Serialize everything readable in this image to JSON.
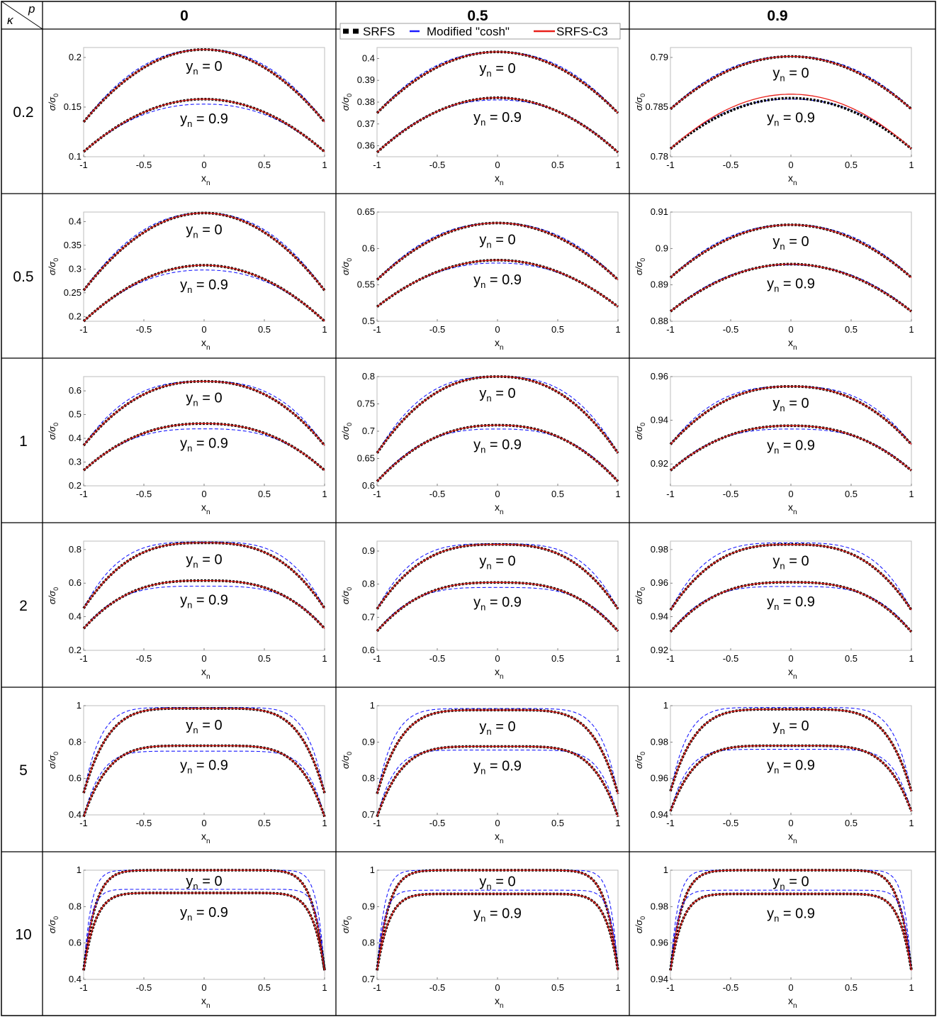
{
  "table": {
    "corner_kappa": "κ",
    "corner_p": "p",
    "p_headers": [
      "0",
      "0.5",
      "0.9"
    ],
    "kappa_labels": [
      "0.2",
      "0.5",
      "1",
      "2",
      "5",
      "10"
    ]
  },
  "legend": {
    "items": [
      {
        "label": "SRFS",
        "style": "dotted-black"
      },
      {
        "label": "Modified \"cosh\"",
        "style": "dashed-blue"
      },
      {
        "label": "SRFS-C3",
        "style": "solid-red"
      }
    ]
  },
  "colors": {
    "srfs": "#000000",
    "cosh": "#1a1aff",
    "c3": "#e8201a",
    "frame": "#bdbdbd"
  },
  "axis_text": {
    "xlabel_main": "x",
    "xlabel_sub": "n",
    "ylabel": "σ/σ",
    "ylabel_sub": "0"
  },
  "curve_labels": {
    "yn0": "y",
    "yn0_sub": "n",
    "yn0_val": " = 0",
    "yn9_val": " = 0.9"
  },
  "chart_data": [
    {
      "type": "line",
      "kappa": "0.2",
      "p": "0",
      "xlim": [
        -1,
        1
      ],
      "ylim": [
        0.1,
        0.21
      ],
      "yticks": [
        "0.1",
        "0.15",
        "0.2"
      ],
      "yticks_v": [
        0.1,
        0.15,
        0.2
      ],
      "xticks": [
        "-1",
        "-0.5",
        "0",
        "0.5",
        "1"
      ],
      "series": [
        {
          "curve": "yn=0",
          "edge": 0.135,
          "center": 0.208,
          "cosh_edge": 0.135,
          "cosh_center": 0.208
        },
        {
          "curve": "yn=0.9",
          "edge": 0.105,
          "center": 0.158,
          "cosh_edge": 0.105,
          "cosh_center": 0.153
        }
      ]
    },
    {
      "type": "line",
      "kappa": "0.2",
      "p": "0.5",
      "xlim": [
        -1,
        1
      ],
      "ylim": [
        0.355,
        0.405
      ],
      "yticks": [
        "0.36",
        "0.37",
        "0.38",
        "0.39",
        "0.4"
      ],
      "yticks_v": [
        0.36,
        0.37,
        0.38,
        0.39,
        0.4
      ],
      "xticks": [
        "-1",
        "-0.5",
        "0",
        "0.5",
        "1"
      ],
      "series": [
        {
          "curve": "yn=0",
          "edge": 0.375,
          "center": 0.403,
          "cosh_edge": 0.375,
          "cosh_center": 0.403
        },
        {
          "curve": "yn=0.9",
          "edge": 0.357,
          "center": 0.382,
          "cosh_edge": 0.357,
          "cosh_center": 0.381
        }
      ]
    },
    {
      "type": "line",
      "kappa": "0.2",
      "p": "0.9",
      "xlim": [
        -1,
        1
      ],
      "ylim": [
        0.78,
        0.791
      ],
      "yticks": [
        "0.78",
        "0.785",
        "0.79"
      ],
      "yticks_v": [
        0.78,
        0.785,
        0.79
      ],
      "xticks": [
        "-1",
        "-0.5",
        "0",
        "0.5",
        "1"
      ],
      "series": [
        {
          "curve": "yn=0",
          "edge": 0.7848,
          "center": 0.7901,
          "cosh_edge": 0.7848,
          "cosh_center": 0.7901
        },
        {
          "curve": "yn=0.9",
          "edge": 0.7808,
          "center": 0.7859,
          "cosh_edge": 0.7808,
          "cosh_center": 0.7858,
          "c3_center": 0.7863
        }
      ]
    },
    {
      "type": "line",
      "kappa": "0.5",
      "p": "0",
      "xlim": [
        -1,
        1
      ],
      "ylim": [
        0.19,
        0.42
      ],
      "yticks": [
        "0.2",
        "0.25",
        "0.3",
        "0.35",
        "0.4"
      ],
      "yticks_v": [
        0.2,
        0.25,
        0.3,
        0.35,
        0.4
      ],
      "xticks": [
        "-1",
        "-0.5",
        "0",
        "0.5",
        "1"
      ],
      "series": [
        {
          "curve": "yn=0",
          "edge": 0.255,
          "center": 0.418,
          "cosh_edge": 0.255,
          "cosh_center": 0.418
        },
        {
          "curve": "yn=0.9",
          "edge": 0.19,
          "center": 0.308,
          "cosh_edge": 0.19,
          "cosh_center": 0.298
        }
      ]
    },
    {
      "type": "line",
      "kappa": "0.5",
      "p": "0.5",
      "xlim": [
        -1,
        1
      ],
      "ylim": [
        0.5,
        0.65
      ],
      "yticks": [
        "0.5",
        "0.55",
        "0.6",
        "0.65"
      ],
      "yticks_v": [
        0.5,
        0.55,
        0.6,
        0.65
      ],
      "xticks": [
        "-1",
        "-0.5",
        "0",
        "0.5",
        "1"
      ],
      "series": [
        {
          "curve": "yn=0",
          "edge": 0.557,
          "center": 0.635,
          "cosh_edge": 0.557,
          "cosh_center": 0.635
        },
        {
          "curve": "yn=0.9",
          "edge": 0.52,
          "center": 0.584,
          "cosh_edge": 0.52,
          "cosh_center": 0.58
        }
      ]
    },
    {
      "type": "line",
      "kappa": "0.5",
      "p": "0.9",
      "xlim": [
        -1,
        1
      ],
      "ylim": [
        0.88,
        0.91
      ],
      "yticks": [
        "0.88",
        "0.89",
        "0.9",
        "0.91"
      ],
      "yticks_v": [
        0.88,
        0.89,
        0.9,
        0.91
      ],
      "xticks": [
        "-1",
        "-0.5",
        "0",
        "0.5",
        "1"
      ],
      "series": [
        {
          "curve": "yn=0",
          "edge": 0.892,
          "center": 0.9065,
          "cosh_edge": 0.892,
          "cosh_center": 0.9065
        },
        {
          "curve": "yn=0.9",
          "edge": 0.8827,
          "center": 0.8957,
          "cosh_edge": 0.8827,
          "cosh_center": 0.8955
        }
      ]
    },
    {
      "type": "line",
      "kappa": "1",
      "p": "0",
      "xlim": [
        -1,
        1
      ],
      "ylim": [
        0.2,
        0.66
      ],
      "yticks": [
        "0.2",
        "0.3",
        "0.4",
        "0.5",
        "0.6"
      ],
      "yticks_v": [
        0.2,
        0.3,
        0.4,
        0.5,
        0.6
      ],
      "xticks": [
        "-1",
        "-0.5",
        "0",
        "0.5",
        "1"
      ],
      "series": [
        {
          "curve": "yn=0",
          "edge": 0.37,
          "center": 0.64,
          "cosh_edge": 0.37,
          "cosh_center": 0.64
        },
        {
          "curve": "yn=0.9",
          "edge": 0.265,
          "center": 0.462,
          "cosh_edge": 0.265,
          "cosh_center": 0.44
        }
      ]
    },
    {
      "type": "line",
      "kappa": "1",
      "p": "0.5",
      "xlim": [
        -1,
        1
      ],
      "ylim": [
        0.6,
        0.8
      ],
      "yticks": [
        "0.6",
        "0.65",
        "0.7",
        "0.75",
        "0.8"
      ],
      "yticks_v": [
        0.6,
        0.65,
        0.7,
        0.75,
        0.8
      ],
      "xticks": [
        "-1",
        "-0.5",
        "0",
        "0.5",
        "1"
      ],
      "series": [
        {
          "curve": "yn=0",
          "edge": 0.66,
          "center": 0.8,
          "cosh_edge": 0.66,
          "cosh_center": 0.8
        },
        {
          "curve": "yn=0.9",
          "edge": 0.608,
          "center": 0.711,
          "cosh_edge": 0.608,
          "cosh_center": 0.704
        }
      ]
    },
    {
      "type": "line",
      "kappa": "1",
      "p": "0.9",
      "xlim": [
        -1,
        1
      ],
      "ylim": [
        0.91,
        0.96
      ],
      "yticks": [
        "0.92",
        "0.94",
        "0.96"
      ],
      "yticks_v": [
        0.92,
        0.94,
        0.96
      ],
      "xticks": [
        "-1",
        "-0.5",
        "0",
        "0.5",
        "1"
      ],
      "series": [
        {
          "curve": "yn=0",
          "edge": 0.929,
          "center": 0.9555,
          "cosh_edge": 0.929,
          "cosh_center": 0.9555
        },
        {
          "curve": "yn=0.9",
          "edge": 0.917,
          "center": 0.9375,
          "cosh_edge": 0.917,
          "cosh_center": 0.936
        }
      ]
    },
    {
      "type": "line",
      "kappa": "2",
      "p": "0",
      "xlim": [
        -1,
        1
      ],
      "ylim": [
        0.2,
        0.85
      ],
      "yticks": [
        "0.2",
        "0.4",
        "0.6",
        "0.8"
      ],
      "yticks_v": [
        0.2,
        0.4,
        0.6,
        0.8
      ],
      "xticks": [
        "-1",
        "-0.5",
        "0",
        "0.5",
        "1"
      ],
      "series": [
        {
          "curve": "yn=0",
          "edge": 0.45,
          "center": 0.84,
          "cosh_edge": 0.45,
          "cosh_center": 0.845
        },
        {
          "curve": "yn=0.9",
          "edge": 0.33,
          "center": 0.615,
          "cosh_edge": 0.33,
          "cosh_center": 0.582
        }
      ]
    },
    {
      "type": "line",
      "kappa": "2",
      "p": "0.5",
      "xlim": [
        -1,
        1
      ],
      "ylim": [
        0.6,
        0.93
      ],
      "yticks": [
        "0.6",
        "0.7",
        "0.8",
        "0.9"
      ],
      "yticks_v": [
        0.6,
        0.7,
        0.8,
        0.9
      ],
      "xticks": [
        "-1",
        "-0.5",
        "0",
        "0.5",
        "1"
      ],
      "series": [
        {
          "curve": "yn=0",
          "edge": 0.725,
          "center": 0.92,
          "cosh_edge": 0.725,
          "cosh_center": 0.922
        },
        {
          "curve": "yn=0.9",
          "edge": 0.658,
          "center": 0.805,
          "cosh_edge": 0.658,
          "cosh_center": 0.79
        }
      ]
    },
    {
      "type": "line",
      "kappa": "2",
      "p": "0.9",
      "xlim": [
        -1,
        1
      ],
      "ylim": [
        0.92,
        0.985
      ],
      "yticks": [
        "0.92",
        "0.94",
        "0.96",
        "0.98"
      ],
      "yticks_v": [
        0.92,
        0.94,
        0.96,
        0.98
      ],
      "xticks": [
        "-1",
        "-0.5",
        "0",
        "0.5",
        "1"
      ],
      "series": [
        {
          "curve": "yn=0",
          "edge": 0.944,
          "center": 0.983,
          "cosh_edge": 0.944,
          "cosh_center": 0.984
        },
        {
          "curve": "yn=0.9",
          "edge": 0.931,
          "center": 0.9605,
          "cosh_edge": 0.931,
          "cosh_center": 0.958
        }
      ]
    },
    {
      "type": "line",
      "kappa": "5",
      "p": "0",
      "xlim": [
        -1,
        1
      ],
      "ylim": [
        0.4,
        1.0
      ],
      "yticks": [
        "0.4",
        "0.6",
        "0.8",
        "1"
      ],
      "yticks_v": [
        0.4,
        0.6,
        0.8,
        1.0
      ],
      "xticks": [
        "-1",
        "-0.5",
        "0",
        "0.5",
        "1"
      ],
      "series": [
        {
          "curve": "yn=0",
          "edge": 0.52,
          "center": 0.985,
          "cosh_edge": 0.52,
          "cosh_center": 0.99
        },
        {
          "curve": "yn=0.9",
          "edge": 0.39,
          "center": 0.78,
          "cosh_edge": 0.39,
          "cosh_center": 0.75
        }
      ]
    },
    {
      "type": "line",
      "kappa": "5",
      "p": "0.5",
      "xlim": [
        -1,
        1
      ],
      "ylim": [
        0.7,
        1.0
      ],
      "yticks": [
        "0.7",
        "0.8",
        "0.9",
        "1"
      ],
      "yticks_v": [
        0.7,
        0.8,
        0.9,
        1.0
      ],
      "xticks": [
        "-1",
        "-0.5",
        "0",
        "0.5",
        "1"
      ],
      "series": [
        {
          "curve": "yn=0",
          "edge": 0.758,
          "center": 0.988,
          "cosh_edge": 0.758,
          "cosh_center": 0.992
        },
        {
          "curve": "yn=0.9",
          "edge": 0.695,
          "center": 0.888,
          "cosh_edge": 0.695,
          "cosh_center": 0.878
        }
      ]
    },
    {
      "type": "line",
      "kappa": "5",
      "p": "0.9",
      "xlim": [
        -1,
        1
      ],
      "ylim": [
        0.94,
        1.0
      ],
      "yticks": [
        "0.94",
        "0.96",
        "0.98",
        "1"
      ],
      "yticks_v": [
        0.94,
        0.96,
        0.98,
        1.0
      ],
      "xticks": [
        "-1",
        "-0.5",
        "0",
        "0.5",
        "1"
      ],
      "series": [
        {
          "curve": "yn=0",
          "edge": 0.953,
          "center": 0.998,
          "cosh_edge": 0.953,
          "cosh_center": 0.999
        },
        {
          "curve": "yn=0.9",
          "edge": 0.942,
          "center": 0.978,
          "cosh_edge": 0.942,
          "cosh_center": 0.976
        }
      ]
    },
    {
      "type": "line",
      "kappa": "10",
      "p": "0",
      "xlim": [
        -1,
        1
      ],
      "ylim": [
        0.4,
        1.0
      ],
      "yticks": [
        "0.4",
        "0.6",
        "0.8",
        "1"
      ],
      "yticks_v": [
        0.4,
        0.6,
        0.8,
        1.0
      ],
      "xticks": [
        "-1",
        "-0.5",
        "0",
        "0.5",
        "1"
      ],
      "series": [
        {
          "curve": "yn=0",
          "edge": 0.45,
          "center": 1.0,
          "cosh_edge": 0.45,
          "cosh_center": 1.0
        },
        {
          "curve": "yn=0.9",
          "edge": 0.45,
          "center": 0.875,
          "cosh_edge": 0.45,
          "cosh_center": 0.895
        }
      ]
    },
    {
      "type": "line",
      "kappa": "10",
      "p": "0.5",
      "xlim": [
        -1,
        1
      ],
      "ylim": [
        0.7,
        1.0
      ],
      "yticks": [
        "0.7",
        "0.8",
        "0.9",
        "1"
      ],
      "yticks_v": [
        0.7,
        0.8,
        0.9,
        1.0
      ],
      "xticks": [
        "-1",
        "-0.5",
        "0",
        "0.5",
        "1"
      ],
      "series": [
        {
          "curve": "yn=0",
          "edge": 0.725,
          "center": 1.0,
          "cosh_edge": 0.725,
          "cosh_center": 1.0
        },
        {
          "curve": "yn=0.9",
          "edge": 0.725,
          "center": 0.935,
          "cosh_edge": 0.725,
          "cosh_center": 0.945
        }
      ]
    },
    {
      "type": "line",
      "kappa": "10",
      "p": "0.9",
      "xlim": [
        -1,
        1
      ],
      "ylim": [
        0.94,
        1.0
      ],
      "yticks": [
        "0.94",
        "0.96",
        "0.98",
        "1"
      ],
      "yticks_v": [
        0.94,
        0.96,
        0.98,
        1.0
      ],
      "xticks": [
        "-1",
        "-0.5",
        "0",
        "0.5",
        "1"
      ],
      "series": [
        {
          "curve": "yn=0",
          "edge": 0.945,
          "center": 1.0,
          "cosh_edge": 0.945,
          "cosh_center": 1.0
        },
        {
          "curve": "yn=0.9",
          "edge": 0.945,
          "center": 0.987,
          "cosh_edge": 0.945,
          "cosh_center": 0.989
        }
      ]
    }
  ]
}
